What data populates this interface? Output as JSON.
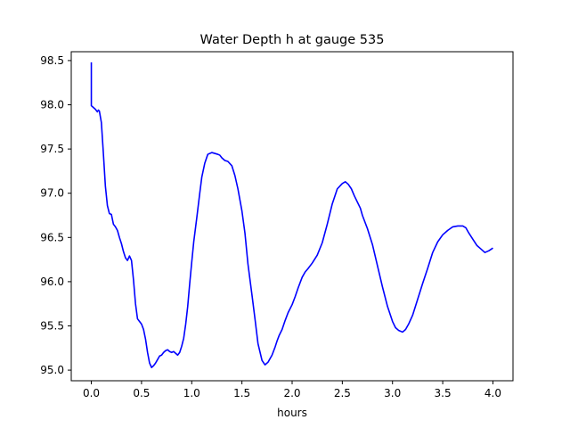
{
  "chart_data": {
    "type": "line",
    "title": "Water Depth h at gauge 535",
    "xlabel": "hours",
    "ylabel": "",
    "xlim": [
      -0.2,
      4.2
    ],
    "ylim": [
      94.88,
      98.6
    ],
    "xticks": [
      0.0,
      0.5,
      1.0,
      1.5,
      2.0,
      2.5,
      3.0,
      3.5,
      4.0
    ],
    "xtick_labels": [
      "0.0",
      "0.5",
      "1.0",
      "1.5",
      "2.0",
      "2.5",
      "3.0",
      "3.5",
      "4.0"
    ],
    "yticks": [
      95.0,
      95.5,
      96.0,
      96.5,
      97.0,
      97.5,
      98.0,
      98.5
    ],
    "ytick_labels": [
      "95.0",
      "95.5",
      "96.0",
      "96.5",
      "97.0",
      "97.5",
      "98.0",
      "98.5"
    ],
    "grid": false,
    "series": [
      {
        "color": "#0000ff",
        "x": [
          0.0,
          0.0,
          0.02,
          0.04,
          0.06,
          0.07,
          0.08,
          0.1,
          0.12,
          0.14,
          0.16,
          0.18,
          0.2,
          0.22,
          0.24,
          0.26,
          0.28,
          0.3,
          0.32,
          0.34,
          0.36,
          0.38,
          0.4,
          0.42,
          0.44,
          0.46,
          0.48,
          0.5,
          0.52,
          0.54,
          0.56,
          0.58,
          0.6,
          0.62,
          0.64,
          0.66,
          0.68,
          0.7,
          0.72,
          0.74,
          0.76,
          0.78,
          0.8,
          0.82,
          0.84,
          0.86,
          0.88,
          0.9,
          0.92,
          0.94,
          0.96,
          0.98,
          1.0,
          1.02,
          1.05,
          1.08,
          1.1,
          1.13,
          1.16,
          1.2,
          1.23,
          1.26,
          1.28,
          1.3,
          1.33,
          1.36,
          1.4,
          1.43,
          1.46,
          1.5,
          1.53,
          1.56,
          1.6,
          1.63,
          1.66,
          1.7,
          1.73,
          1.76,
          1.8,
          1.83,
          1.85,
          1.87,
          1.9,
          1.93,
          1.96,
          2.0,
          2.03,
          2.06,
          2.1,
          2.13,
          2.16,
          2.2,
          2.25,
          2.3,
          2.35,
          2.4,
          2.45,
          2.5,
          2.53,
          2.56,
          2.59,
          2.62,
          2.65,
          2.68,
          2.7,
          2.75,
          2.8,
          2.85,
          2.9,
          2.95,
          3.0,
          3.03,
          3.06,
          3.1,
          3.13,
          3.16,
          3.2,
          3.25,
          3.3,
          3.35,
          3.4,
          3.45,
          3.5,
          3.55,
          3.6,
          3.65,
          3.7,
          3.73,
          3.76,
          3.8,
          3.84,
          3.88,
          3.92,
          3.96,
          4.0
        ],
        "y": [
          98.48,
          97.99,
          97.97,
          97.95,
          97.92,
          97.94,
          97.93,
          97.8,
          97.45,
          97.08,
          96.86,
          96.77,
          96.76,
          96.65,
          96.62,
          96.58,
          96.5,
          96.43,
          96.34,
          96.27,
          96.24,
          96.29,
          96.24,
          96.02,
          95.75,
          95.58,
          95.55,
          95.52,
          95.46,
          95.35,
          95.2,
          95.08,
          95.03,
          95.05,
          95.08,
          95.12,
          95.16,
          95.17,
          95.2,
          95.22,
          95.23,
          95.21,
          95.2,
          95.21,
          95.19,
          95.17,
          95.2,
          95.27,
          95.36,
          95.52,
          95.72,
          95.98,
          96.22,
          96.45,
          96.72,
          97.0,
          97.18,
          97.34,
          97.44,
          97.46,
          97.45,
          97.44,
          97.43,
          97.4,
          97.37,
          97.36,
          97.31,
          97.2,
          97.05,
          96.8,
          96.55,
          96.2,
          95.85,
          95.58,
          95.3,
          95.11,
          95.06,
          95.09,
          95.17,
          95.26,
          95.33,
          95.39,
          95.46,
          95.56,
          95.65,
          95.74,
          95.83,
          95.93,
          96.05,
          96.11,
          96.15,
          96.21,
          96.3,
          96.44,
          96.65,
          96.88,
          97.05,
          97.11,
          97.13,
          97.1,
          97.05,
          96.97,
          96.9,
          96.83,
          96.75,
          96.6,
          96.42,
          96.18,
          95.94,
          95.72,
          95.55,
          95.48,
          95.45,
          95.43,
          95.46,
          95.52,
          95.62,
          95.8,
          95.98,
          96.15,
          96.33,
          96.45,
          96.53,
          96.58,
          96.62,
          96.63,
          96.63,
          96.61,
          96.55,
          96.48,
          96.41,
          96.37,
          96.33,
          96.35,
          96.38
        ]
      }
    ]
  }
}
